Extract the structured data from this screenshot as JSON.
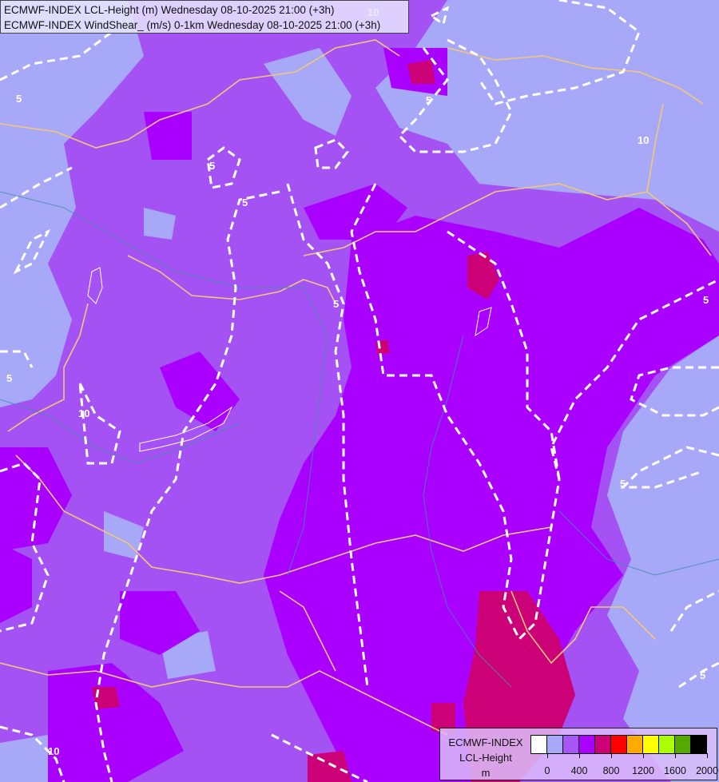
{
  "header": {
    "line1": "ECMWF-INDEX LCL-Height (m) Wednesday 08-10-2025 21:00 (+3h)",
    "line2": "ECMWF-INDEX WindShear_ (m/s) 0-1km Wednesday 08-10-2025 21:00 (+3h)"
  },
  "legend": {
    "line1": "ECMWF-INDEX",
    "line2": "LCL-Height",
    "unit": "m",
    "colors": [
      "#ffffff",
      "#a8a8f8",
      "#a855f7",
      "#aa00ff",
      "#cc0077",
      "#ff0000",
      "#ffaa00",
      "#ffff00",
      "#aaff00",
      "#55aa00",
      "#000000"
    ],
    "ticks": [
      "0",
      "400",
      "800",
      "1200",
      "1600",
      "2000"
    ]
  },
  "map": {
    "colors": {
      "base": "#a552f5",
      "low": "#a8a8f8",
      "high": "#aa00ff",
      "very_high": "#cc0077",
      "borders": "#f0c878",
      "rivers": "#3a8fa8",
      "contours": "#ffffff"
    },
    "contour_labels": [
      "5",
      "5",
      "5",
      "5",
      "5",
      "5",
      "5",
      "5",
      "5",
      "10",
      "10",
      "10",
      "10"
    ]
  }
}
